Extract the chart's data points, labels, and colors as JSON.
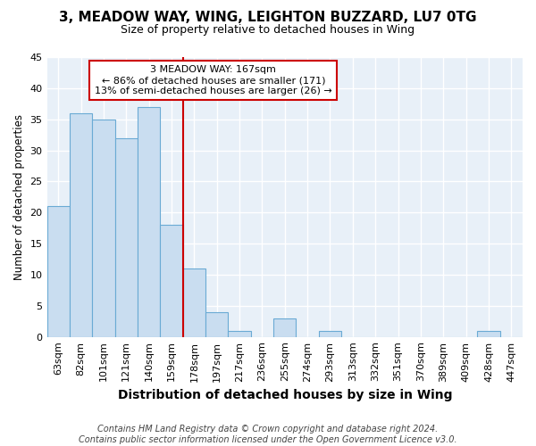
{
  "title": "3, MEADOW WAY, WING, LEIGHTON BUZZARD, LU7 0TG",
  "subtitle": "Size of property relative to detached houses in Wing",
  "xlabel": "Distribution of detached houses by size in Wing",
  "ylabel": "Number of detached properties",
  "categories": [
    "63sqm",
    "82sqm",
    "101sqm",
    "121sqm",
    "140sqm",
    "159sqm",
    "178sqm",
    "197sqm",
    "217sqm",
    "236sqm",
    "255sqm",
    "274sqm",
    "293sqm",
    "313sqm",
    "332sqm",
    "351sqm",
    "370sqm",
    "389sqm",
    "409sqm",
    "428sqm",
    "447sqm"
  ],
  "values": [
    21,
    36,
    35,
    32,
    37,
    18,
    11,
    4,
    1,
    0,
    3,
    0,
    1,
    0,
    0,
    0,
    0,
    0,
    0,
    1,
    0
  ],
  "bar_color": "#c9ddf0",
  "bar_edge_color": "#6aaad4",
  "background_color": "#e8f0f8",
  "grid_color": "#ffffff",
  "property_line_x": 5.5,
  "annotation_line1": "3 MEADOW WAY: 167sqm",
  "annotation_line2": "← 86% of detached houses are smaller (171)",
  "annotation_line3": "13% of semi-detached houses are larger (26) →",
  "annotation_box_color": "#ffffff",
  "annotation_box_edge_color": "#cc0000",
  "vline_color": "#cc0000",
  "footer": "Contains HM Land Registry data © Crown copyright and database right 2024.\nContains public sector information licensed under the Open Government Licence v3.0.",
  "fig_background": "#ffffff",
  "ylim": [
    0,
    45
  ],
  "yticks": [
    0,
    5,
    10,
    15,
    20,
    25,
    30,
    35,
    40,
    45
  ],
  "title_fontsize": 11,
  "subtitle_fontsize": 9,
  "xlabel_fontsize": 10,
  "ylabel_fontsize": 8.5,
  "tick_fontsize": 8,
  "footer_fontsize": 7
}
